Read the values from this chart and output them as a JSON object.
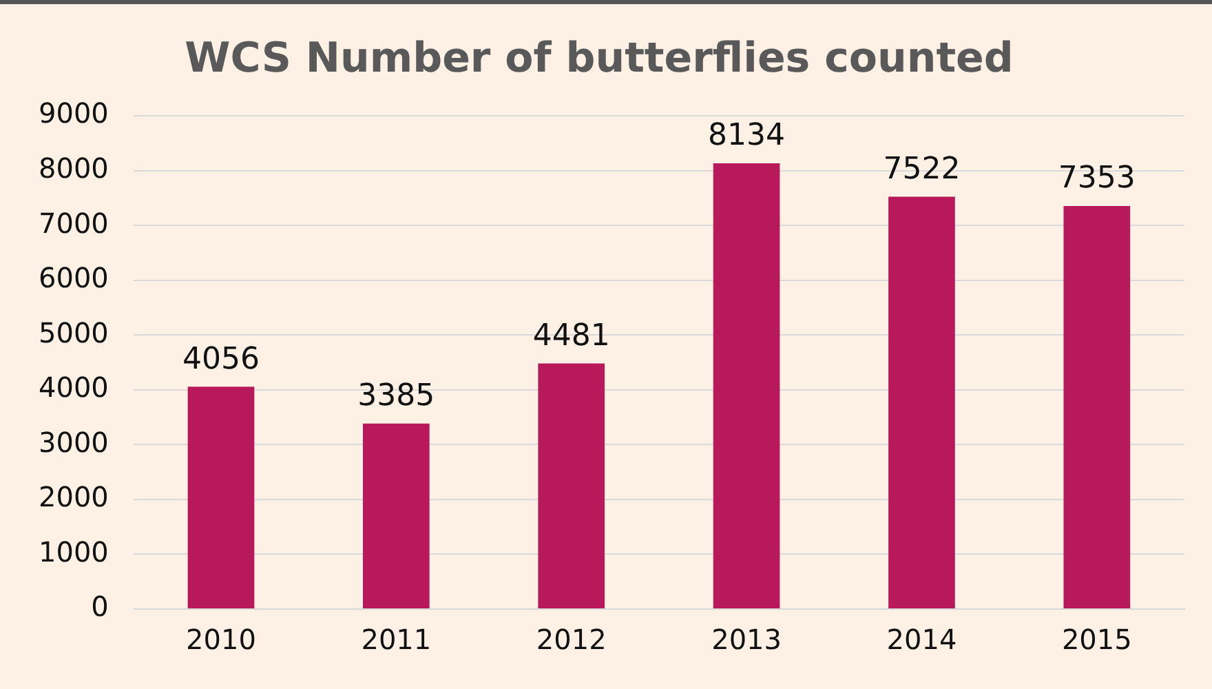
{
  "chart_data": {
    "type": "bar",
    "title": "WCS Number of butterflies counted",
    "categories": [
      "2010",
      "2011",
      "2012",
      "2013",
      "2014",
      "2015"
    ],
    "values": [
      4056,
      3385,
      4481,
      8134,
      7522,
      7353
    ],
    "color": "#b8195b",
    "ylim": [
      0,
      9000
    ],
    "yticks": [
      0,
      1000,
      2000,
      3000,
      4000,
      5000,
      6000,
      7000,
      8000,
      9000
    ],
    "grid": "y",
    "data_labels": true
  }
}
